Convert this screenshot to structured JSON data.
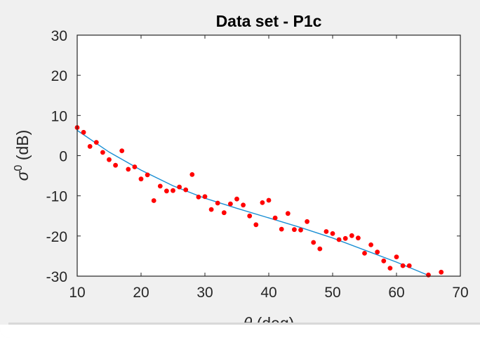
{
  "chart_data": {
    "type": "scatter",
    "title": "Data set - P1c",
    "xlabel": {
      "symbol": "θ",
      "text": " (deg)"
    },
    "ylabel": {
      "symbol": "σ",
      "superscript": "0",
      "text": " (dB)"
    },
    "xlim": [
      10,
      70
    ],
    "ylim": [
      -30,
      30
    ],
    "xticks": [
      10,
      20,
      30,
      40,
      50,
      60,
      70
    ],
    "yticks": [
      30,
      20,
      10,
      0,
      -10,
      -20,
      -30
    ],
    "grid": false,
    "series": [
      {
        "type": "scatter",
        "color": "#ff0000",
        "x": [
          10,
          11,
          12,
          13,
          14,
          15,
          16,
          17,
          18,
          19,
          20,
          21,
          22,
          23,
          24,
          25,
          26,
          27,
          28,
          29,
          30,
          31,
          32,
          33,
          34,
          35,
          36,
          37,
          38,
          39,
          40,
          41,
          42,
          43,
          44,
          45,
          46,
          47,
          48,
          49,
          50,
          51,
          52,
          53,
          54,
          55,
          56,
          57,
          58,
          59,
          60,
          61,
          62,
          65,
          67
        ],
        "y": [
          7.0,
          5.8,
          2.3,
          3.3,
          0.8,
          -1.0,
          -2.4,
          1.2,
          -3.4,
          -2.8,
          -5.8,
          -4.8,
          -11.2,
          -7.6,
          -8.8,
          -8.7,
          -7.8,
          -8.5,
          -4.7,
          -10.3,
          -10.2,
          -13.4,
          -11.8,
          -14.2,
          -12.0,
          -10.8,
          -12.3,
          -15.0,
          -17.2,
          -11.7,
          -11.1,
          -15.5,
          -18.3,
          -14.4,
          -18.4,
          -18.5,
          -16.4,
          -21.6,
          -23.2,
          -18.9,
          -19.4,
          -20.9,
          -20.6,
          -19.9,
          -20.5,
          -24.3,
          -22.2,
          -24.0,
          -26.2,
          -28.0,
          -25.2,
          -27.4,
          -27.4,
          -29.7,
          -29.0
        ]
      },
      {
        "type": "line",
        "color": "#1a8fd4",
        "x": [
          10,
          15,
          20,
          25,
          30,
          35,
          40,
          45,
          50,
          55,
          60,
          65
        ],
        "y": [
          6.3,
          0.9,
          -3.6,
          -7.5,
          -10.6,
          -13.1,
          -15.5,
          -17.9,
          -20.5,
          -23.5,
          -26.5,
          -29.8
        ]
      }
    ]
  }
}
